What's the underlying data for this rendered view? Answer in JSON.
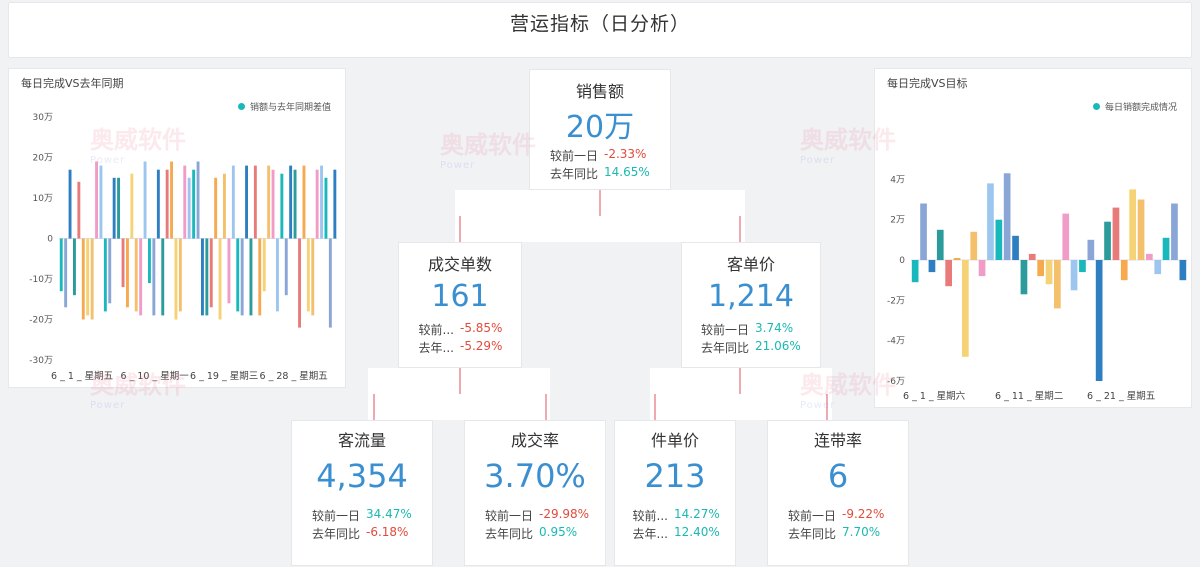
{
  "header": {
    "title": "营运指标（日分析）"
  },
  "watermark": {
    "text": "奥威软件",
    "sub": "Power"
  },
  "colors": {
    "palette": [
      "#18b8bd",
      "#f5c06b",
      "#e87a7a",
      "#8aa6d6",
      "#f09cc6",
      "#f7a94f",
      "#2d7fc1",
      "#9cc6ef",
      "#f6d276",
      "#2b9b9b"
    ],
    "kpi_value": "#3a8fd0",
    "negative": "#e14b3b",
    "positive": "#1ab9b2"
  },
  "kpis": {
    "sales": {
      "name": "销售额",
      "value": "20万",
      "r1_label": "较前一日",
      "r1_value": "-2.33%",
      "r1_color": "red",
      "r2_label": "去年同比",
      "r2_value": "14.65%",
      "r2_color": "teal"
    },
    "orders": {
      "name": "成交单数",
      "value": "161",
      "r1_label": "较前...",
      "r1_value": "-5.85%",
      "r1_color": "red",
      "r2_label": "去年...",
      "r2_value": "-5.29%",
      "r2_color": "red"
    },
    "avg_price": {
      "name": "客单价",
      "value": "1,214",
      "r1_label": "较前一日",
      "r1_value": "3.74%",
      "r1_color": "teal",
      "r2_label": "去年同比",
      "r2_value": "21.06%",
      "r2_color": "teal"
    },
    "traffic": {
      "name": "客流量",
      "value": "4,354",
      "r1_label": "较前一日",
      "r1_value": "34.47%",
      "r1_color": "teal",
      "r2_label": "去年同比",
      "r2_value": "-6.18%",
      "r2_color": "red"
    },
    "conversion": {
      "name": "成交率",
      "value": "3.70%",
      "r1_label": "较前一日",
      "r1_value": "-29.98%",
      "r1_color": "red",
      "r2_label": "去年同比",
      "r2_value": "0.95%",
      "r2_color": "teal"
    },
    "unit_price": {
      "name": "件单价",
      "value": "213",
      "r1_label": "较前...",
      "r1_value": "14.27%",
      "r1_color": "teal",
      "r2_label": "去年...",
      "r2_value": "12.40%",
      "r2_color": "teal"
    },
    "attach_rate": {
      "name": "连带率",
      "value": "6",
      "r1_label": "较前一日",
      "r1_value": "-9.22%",
      "r1_color": "red",
      "r2_label": "去年同比",
      "r2_value": "7.70%",
      "r2_color": "teal"
    }
  },
  "chart_data": [
    {
      "type": "bar",
      "title": "每日完成VS去年同期",
      "legend": "销额与去年同期差值",
      "legend_position": "top-right",
      "ylim": [
        -30,
        30
      ],
      "yticks": [
        30,
        20,
        10,
        0,
        -10,
        -20,
        -30
      ],
      "ytick_labels": [
        "30万",
        "20万",
        "10万",
        "0",
        "-10万",
        "-20万",
        "-30万"
      ],
      "xtick_labels": [
        "6_1_星期五",
        "6_10_星期一",
        "6_19_星期三",
        "6_28_星期五"
      ],
      "grid": false,
      "series": [
        {
          "values": [
            -13,
            -17,
            17,
            -14,
            14,
            -20,
            -19,
            -20,
            19,
            18,
            -18,
            -16,
            15,
            15,
            -12,
            -17,
            16,
            -18,
            -19,
            19,
            -11,
            -19,
            17,
            -19,
            17,
            19,
            -20,
            -18,
            18,
            15,
            17,
            19,
            -19,
            -19,
            -17,
            15,
            -20,
            16,
            -16,
            18,
            -18,
            -19,
            18,
            -19,
            18,
            -19,
            -13,
            18,
            17,
            -18,
            16,
            -14,
            18,
            17,
            -22,
            18,
            -18,
            -19,
            17,
            18,
            15,
            -22,
            17
          ]
        }
      ]
    },
    {
      "type": "bar",
      "title": "每日完成VS目标",
      "legend": "每日销额完成情况",
      "legend_position": "top-right",
      "ylim": [
        -6,
        6
      ],
      "yticks": [
        4,
        2,
        0,
        -2,
        -4,
        -6
      ],
      "ytick_labels": [
        "4万",
        "2万",
        "0",
        "-2万",
        "-4万",
        "-6万"
      ],
      "xtick_labels": [
        "6_1_星期六",
        "6_11_星期二",
        "6_21_星期五"
      ],
      "grid": false,
      "series": [
        {
          "values": [
            -1.1,
            2.8,
            -0.6,
            1.5,
            -1.3,
            0.1,
            -4.8,
            1.4,
            -0.8,
            3.8,
            2.0,
            4.3,
            1.2,
            -1.7,
            0.3,
            -0.8,
            -1.2,
            -2.4,
            2.3,
            -1.5,
            -0.6,
            1.0,
            -6.0,
            1.9,
            2.6,
            -1.0,
            3.5,
            3.0,
            0.3,
            -0.7,
            1.1,
            2.8,
            -1.0
          ]
        }
      ]
    }
  ]
}
